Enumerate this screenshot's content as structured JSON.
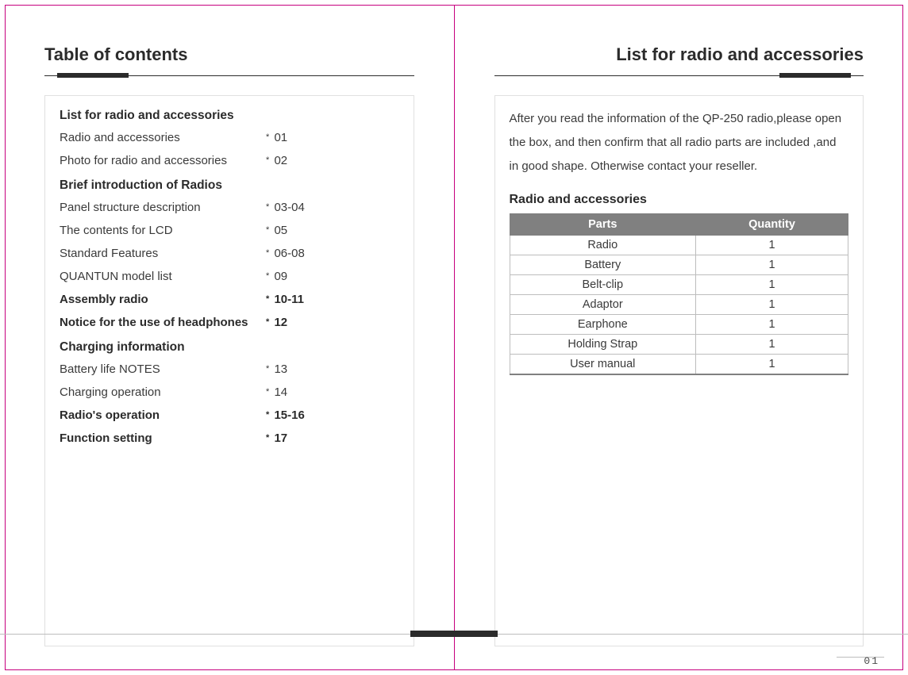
{
  "colors": {
    "frame_border": "#c6007e",
    "text_primary": "#2b2b2b",
    "text_body": "#3a3a3a",
    "rule_thick": "#2b2b2b",
    "box_border": "#e0e0e0",
    "table_header_bg": "#808080",
    "table_header_fg": "#ffffff",
    "table_cell_border": "#bdbdbd",
    "footer_line": "#bdbdbd"
  },
  "left_page": {
    "title": "Table of contents",
    "toc": [
      {
        "type": "section",
        "label": "List for radio and accessories"
      },
      {
        "type": "item",
        "label": "Radio and accessories",
        "page": "01"
      },
      {
        "type": "item",
        "label": "Photo for radio and accessories",
        "page": "02"
      },
      {
        "type": "section",
        "label": "Brief introduction of Radios"
      },
      {
        "type": "item",
        "label": "Panel structure description",
        "page": "03-04"
      },
      {
        "type": "item",
        "label": "The contents for LCD",
        "page": "05"
      },
      {
        "type": "item",
        "label": "Standard Features",
        "page": "06-08"
      },
      {
        "type": "item",
        "label": "QUANTUN model list",
        "page": "09"
      },
      {
        "type": "bold-item",
        "label": "Assembly radio",
        "page": "10-11"
      },
      {
        "type": "bold-item",
        "label": "Notice  for  the use of headphones",
        "page": "12"
      },
      {
        "type": "section",
        "label": "Charging information"
      },
      {
        "type": "item",
        "label": "Battery life NOTES",
        "page": "13"
      },
      {
        "type": "item",
        "label": "Charging operation",
        "page": "14"
      },
      {
        "type": "bold-item",
        "label": "Radio's operation",
        "page": "15-16"
      },
      {
        "type": "bold-item",
        "label": "Function setting",
        "page": "17"
      }
    ]
  },
  "right_page": {
    "title": "List for radio and accessories",
    "intro": "After you read the information of the QP-250 radio,please open the box, and then confirm that all radio parts are included ,and in good shape. Otherwise contact your reseller.",
    "subheading": "Radio and accessories",
    "table": {
      "type": "table",
      "columns": [
        "Parts",
        "Quantity"
      ],
      "rows": [
        [
          "Radio",
          "1"
        ],
        [
          "Battery",
          "1"
        ],
        [
          "Belt-clip",
          "1"
        ],
        [
          "Adaptor",
          "1"
        ],
        [
          "Earphone",
          "1"
        ],
        [
          "Holding Strap",
          "1"
        ],
        [
          "User manual",
          "1"
        ]
      ],
      "header_bg": "#808080",
      "header_fg": "#ffffff",
      "cell_border": "#bdbdbd",
      "col_widths": [
        "55%",
        "45%"
      ]
    },
    "page_number": "01"
  }
}
